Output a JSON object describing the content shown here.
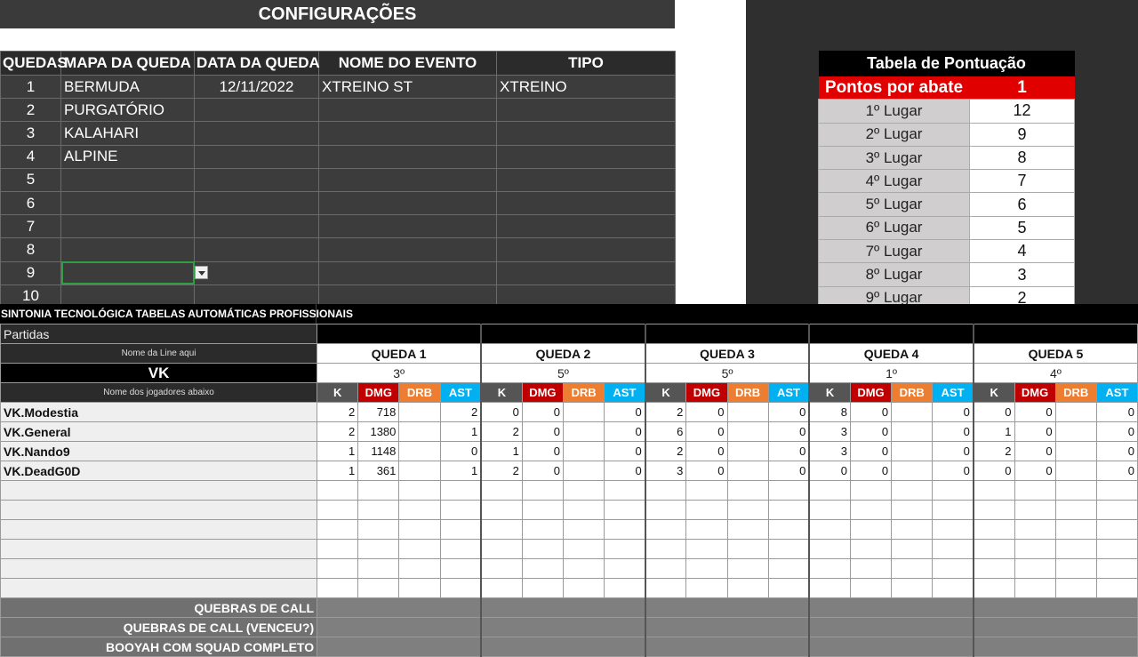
{
  "config": {
    "title": "CONFIGURAÇÕES",
    "headers": [
      "QUEDAS",
      "MAPA DA QUEDA",
      "DATA DA QUEDA",
      "NOME DO EVENTO",
      "TIPO"
    ],
    "rows": [
      {
        "num": "1",
        "map": "BERMUDA",
        "date": "12/11/2022",
        "event": "XTREINO ST",
        "type": "XTREINO"
      },
      {
        "num": "2",
        "map": "PURGATÓRIO",
        "date": "",
        "event": "",
        "type": ""
      },
      {
        "num": "3",
        "map": "KALAHARI",
        "date": "",
        "event": "",
        "type": ""
      },
      {
        "num": "4",
        "map": "ALPINE",
        "date": "",
        "event": "",
        "type": ""
      },
      {
        "num": "5",
        "map": "",
        "date": "",
        "event": "",
        "type": ""
      },
      {
        "num": "6",
        "map": "",
        "date": "",
        "event": "",
        "type": ""
      },
      {
        "num": "7",
        "map": "",
        "date": "",
        "event": "",
        "type": ""
      },
      {
        "num": "8",
        "map": "",
        "date": "",
        "event": "",
        "type": ""
      },
      {
        "num": "9",
        "map": "",
        "date": "",
        "event": "",
        "type": ""
      },
      {
        "num": "10",
        "map": "",
        "date": "",
        "event": "",
        "type": ""
      }
    ],
    "selected_row": 8
  },
  "scoring": {
    "title": "Tabela de Pontuação",
    "kill_label": "Pontos por abate",
    "kill_points": "1",
    "places": [
      {
        "place": "1º Lugar",
        "points": "12"
      },
      {
        "place": "2º Lugar",
        "points": "9"
      },
      {
        "place": "3º Lugar",
        "points": "8"
      },
      {
        "place": "4º Lugar",
        "points": "7"
      },
      {
        "place": "5º Lugar",
        "points": "6"
      },
      {
        "place": "6º Lugar",
        "points": "5"
      },
      {
        "place": "7º Lugar",
        "points": "4"
      },
      {
        "place": "8º Lugar",
        "points": "3"
      },
      {
        "place": "9º Lugar",
        "points": "2"
      }
    ]
  },
  "stats": {
    "brand": "SINTONIA TECNOLÓGICA TABELAS AUTOMÁTICAS PROFISSIONAIS",
    "partidas_label": "Partidas",
    "line_hint": "Nome da Line aqui",
    "line_name": "VK",
    "players_hint": "Nome dos jogadores abaixo",
    "col_labels": {
      "k": "K",
      "dmg": "DMG",
      "drb": "DRB",
      "ast": "AST"
    },
    "quedas": [
      {
        "name": "QUEDA 1",
        "place": "3º"
      },
      {
        "name": "QUEDA 2",
        "place": "5º"
      },
      {
        "name": "QUEDA 3",
        "place": "5º"
      },
      {
        "name": "QUEDA 4",
        "place": "1º"
      },
      {
        "name": "QUEDA 5",
        "place": "4º"
      }
    ],
    "players": [
      {
        "name": "VK.Modestia",
        "values": [
          [
            "2",
            "718",
            "",
            "2"
          ],
          [
            "0",
            "0",
            "",
            "0"
          ],
          [
            "2",
            "0",
            "",
            "0"
          ],
          [
            "8",
            "0",
            "",
            "0"
          ],
          [
            "0",
            "0",
            "",
            "0"
          ]
        ]
      },
      {
        "name": "VK.General",
        "values": [
          [
            "2",
            "1380",
            "",
            "1"
          ],
          [
            "2",
            "0",
            "",
            "0"
          ],
          [
            "6",
            "0",
            "",
            "0"
          ],
          [
            "3",
            "0",
            "",
            "0"
          ],
          [
            "1",
            "0",
            "",
            "0"
          ]
        ]
      },
      {
        "name": "VK.Nando9",
        "values": [
          [
            "1",
            "1148",
            "",
            "0"
          ],
          [
            "1",
            "0",
            "",
            "0"
          ],
          [
            "2",
            "0",
            "",
            "0"
          ],
          [
            "3",
            "0",
            "",
            "0"
          ],
          [
            "2",
            "0",
            "",
            "0"
          ]
        ]
      },
      {
        "name": "VK.DeadG0D",
        "values": [
          [
            "1",
            "361",
            "",
            "1"
          ],
          [
            "2",
            "0",
            "",
            "0"
          ],
          [
            "3",
            "0",
            "",
            "0"
          ],
          [
            "0",
            "0",
            "",
            "0"
          ],
          [
            "0",
            "0",
            "",
            "0"
          ]
        ]
      }
    ],
    "empty_rows": 6,
    "footer_labels": [
      "QUEBRAS DE CALL",
      "QUEBRAS DE CALL (VENCEU?)",
      "BOOYAH COM SQUAD COMPLETO"
    ]
  }
}
